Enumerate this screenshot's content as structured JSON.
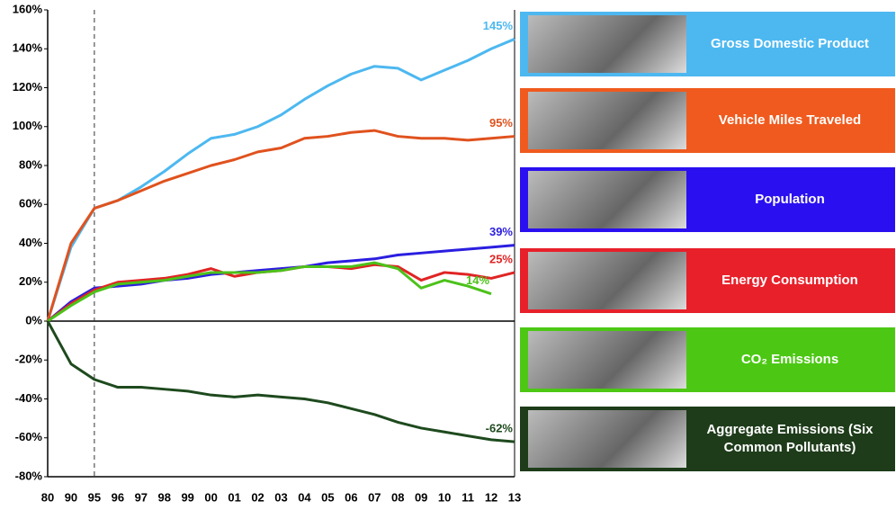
{
  "chart_data": {
    "type": "line",
    "categories": [
      "80",
      "90",
      "95",
      "96",
      "97",
      "98",
      "99",
      "00",
      "01",
      "02",
      "03",
      "04",
      "05",
      "06",
      "07",
      "08",
      "09",
      "10",
      "11",
      "12",
      "13"
    ],
    "ylim": [
      -80,
      160
    ],
    "yticks": [
      {
        "value": -80,
        "label": "-80%"
      },
      {
        "value": -60,
        "label": "-60%"
      },
      {
        "value": -40,
        "label": "-40%"
      },
      {
        "value": -20,
        "label": "-20%"
      },
      {
        "value": 0,
        "label": "0%"
      },
      {
        "value": 20,
        "label": "20%"
      },
      {
        "value": 40,
        "label": "40%"
      },
      {
        "value": 60,
        "label": "60%"
      },
      {
        "value": 80,
        "label": "80%"
      },
      {
        "value": 100,
        "label": "100%"
      },
      {
        "value": 120,
        "label": "120%"
      },
      {
        "value": 140,
        "label": "140%"
      },
      {
        "value": 160,
        "label": "160%"
      }
    ],
    "legend": "right",
    "series": [
      {
        "name": "Gross Domestic Product",
        "color": "#4db8f0",
        "legend_color": "#4db8f0",
        "values": [
          0,
          38,
          58,
          62,
          69,
          77,
          86,
          94,
          96,
          100,
          106,
          114,
          121,
          127,
          131,
          130,
          124,
          129,
          134,
          140,
          145
        ],
        "value_labels": [
          null,
          null,
          null,
          null,
          null,
          null,
          null,
          null,
          null,
          null,
          null,
          null,
          null,
          null,
          null,
          null,
          null,
          null,
          null,
          null,
          "145%"
        ]
      },
      {
        "name": "Vehicle Miles Traveled",
        "color": "#e0521e",
        "legend_color": "#f05a1e",
        "values": [
          0,
          40,
          58,
          62,
          67,
          72,
          76,
          80,
          83,
          87,
          89,
          94,
          95,
          97,
          98,
          95,
          94,
          94,
          93,
          94,
          95
        ],
        "value_labels": [
          null,
          null,
          null,
          null,
          null,
          null,
          null,
          null,
          null,
          null,
          null,
          null,
          null,
          null,
          null,
          null,
          null,
          null,
          null,
          null,
          "95%"
        ]
      },
      {
        "name": "Population",
        "color": "#2b1ee0",
        "legend_color": "#2a10f0",
        "values": [
          0,
          10,
          17,
          18,
          19,
          21,
          22,
          24,
          25,
          26,
          27,
          28,
          30,
          31,
          32,
          34,
          35,
          36,
          37,
          38,
          39
        ],
        "value_labels": [
          null,
          null,
          null,
          null,
          null,
          null,
          null,
          null,
          null,
          null,
          null,
          null,
          null,
          null,
          null,
          null,
          null,
          null,
          null,
          null,
          "39%"
        ]
      },
      {
        "name": "Energy Consumption",
        "color": "#e02424",
        "legend_color": "#e8202a",
        "values": [
          0,
          9,
          16,
          20,
          21,
          22,
          24,
          27,
          23,
          25,
          26,
          28,
          28,
          27,
          29,
          28,
          21,
          25,
          24,
          22,
          25
        ],
        "value_labels": [
          null,
          null,
          null,
          null,
          null,
          null,
          null,
          null,
          null,
          null,
          null,
          null,
          null,
          null,
          null,
          null,
          null,
          null,
          null,
          null,
          "25%"
        ]
      },
      {
        "name": "CO₂ Emissions",
        "color": "#4cc21a",
        "legend_color": "#4cc814",
        "values": [
          0,
          8,
          15,
          19,
          20,
          21,
          23,
          25,
          25,
          25,
          26,
          28,
          28,
          28,
          30,
          27,
          17,
          21,
          18,
          14,
          null
        ],
        "value_labels": [
          null,
          null,
          null,
          null,
          null,
          null,
          null,
          null,
          null,
          null,
          null,
          null,
          null,
          null,
          null,
          null,
          null,
          null,
          null,
          "14%",
          null
        ]
      },
      {
        "name": "Aggregate Emissions (Six Common Pollutants)",
        "color": "#1e4a1e",
        "legend_color": "#1e3c1a",
        "values": [
          0,
          -22,
          -30,
          -34,
          -34,
          -35,
          -36,
          -38,
          -39,
          -38,
          -39,
          -40,
          -42,
          -45,
          -48,
          -52,
          -55,
          -57,
          -59,
          -61,
          -62
        ],
        "value_labels": [
          null,
          null,
          null,
          null,
          null,
          null,
          null,
          null,
          null,
          null,
          null,
          null,
          null,
          null,
          null,
          null,
          null,
          null,
          null,
          null,
          "-62%"
        ]
      }
    ]
  }
}
